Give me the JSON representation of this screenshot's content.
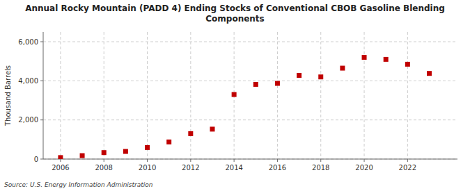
{
  "chart_data": {
    "type": "scatter",
    "title": "Annual Rocky Mountain (PADD 4) Ending Stocks of Conventional CBOB Gasoline Blending\nComponents",
    "y_label": "Thousand Barrels",
    "annotations": [
      "Source: U.S. Energy Information Administration"
    ],
    "x": [
      2006,
      2007,
      2008,
      2009,
      2010,
      2011,
      2012,
      2013,
      2014,
      2015,
      2016,
      2017,
      2018,
      2019,
      2020,
      2021,
      2022,
      2023
    ],
    "values": [
      75,
      175,
      330,
      390,
      590,
      875,
      1300,
      1530,
      3300,
      3820,
      3870,
      4280,
      4200,
      4650,
      5200,
      5100,
      4850,
      4380
    ],
    "color": "#c00000",
    "marker": "square",
    "xlim": [
      2005.2,
      2024.3
    ],
    "xticks": [
      2006,
      2008,
      2010,
      2012,
      2014,
      2016,
      2018,
      2020,
      2022
    ],
    "ylim": [
      0,
      6500
    ],
    "yticks": [
      0,
      {
        "value": 2000,
        "label": "2,000"
      },
      {
        "value": 4000,
        "label": "4,000"
      },
      {
        "value": 6000,
        "label": "6,000"
      }
    ],
    "grid": true
  }
}
